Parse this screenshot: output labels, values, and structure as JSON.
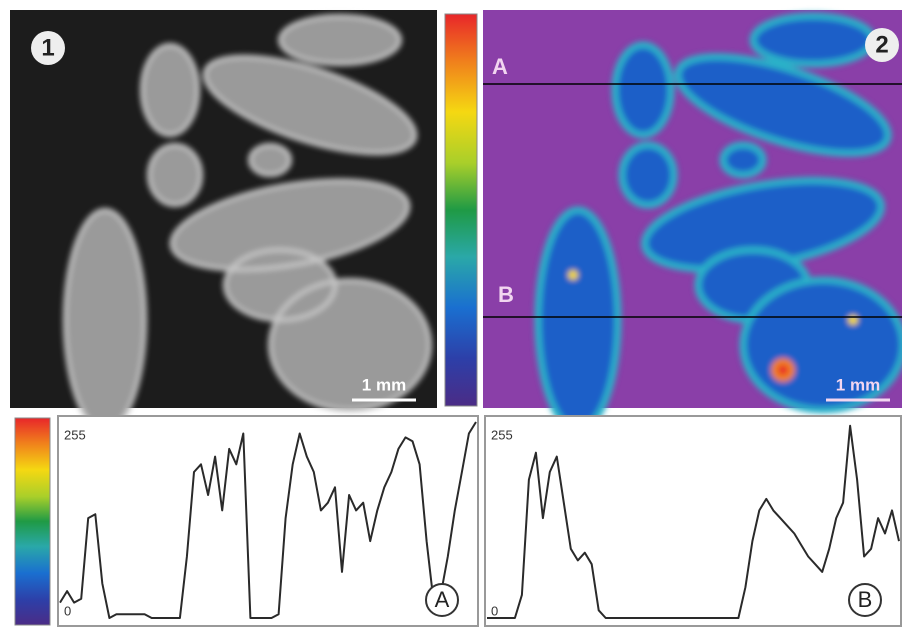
{
  "panels": [
    {
      "label": "1",
      "scale_bar": "1 mm"
    },
    {
      "label": "2",
      "scale_bar": "1 mm",
      "lines": [
        "A",
        "B"
      ]
    }
  ],
  "chart_data": [
    {
      "type": "line",
      "ylim": [
        0,
        255
      ],
      "yticks": [
        0,
        255
      ],
      "series": [
        {
          "name": "A",
          "color": "#2a2a2a",
          "values": [
            20,
            35,
            20,
            25,
            130,
            135,
            45,
            0,
            5,
            5,
            5,
            5,
            5,
            0,
            0,
            0,
            0,
            0,
            80,
            190,
            200,
            160,
            210,
            140,
            220,
            200,
            240,
            0,
            0,
            0,
            0,
            5,
            130,
            200,
            240,
            210,
            190,
            140,
            150,
            170,
            60,
            160,
            140,
            150,
            100,
            140,
            170,
            190,
            220,
            235,
            230,
            200,
            100,
            20,
            30,
            80,
            140,
            190,
            240,
            255
          ]
        }
      ]
    },
    {
      "type": "line",
      "ylim": [
        0,
        255
      ],
      "yticks": [
        0,
        255
      ],
      "series": [
        {
          "name": "B",
          "color": "#2a2a2a",
          "values": [
            0,
            0,
            0,
            0,
            0,
            30,
            180,
            215,
            130,
            190,
            210,
            150,
            90,
            75,
            85,
            70,
            10,
            0,
            0,
            0,
            0,
            0,
            0,
            0,
            0,
            0,
            0,
            0,
            0,
            0,
            0,
            0,
            0,
            0,
            0,
            0,
            0,
            40,
            100,
            140,
            155,
            140,
            130,
            120,
            110,
            95,
            80,
            70,
            60,
            90,
            130,
            150,
            250,
            180,
            80,
            90,
            130,
            110,
            140,
            100
          ]
        }
      ]
    }
  ]
}
